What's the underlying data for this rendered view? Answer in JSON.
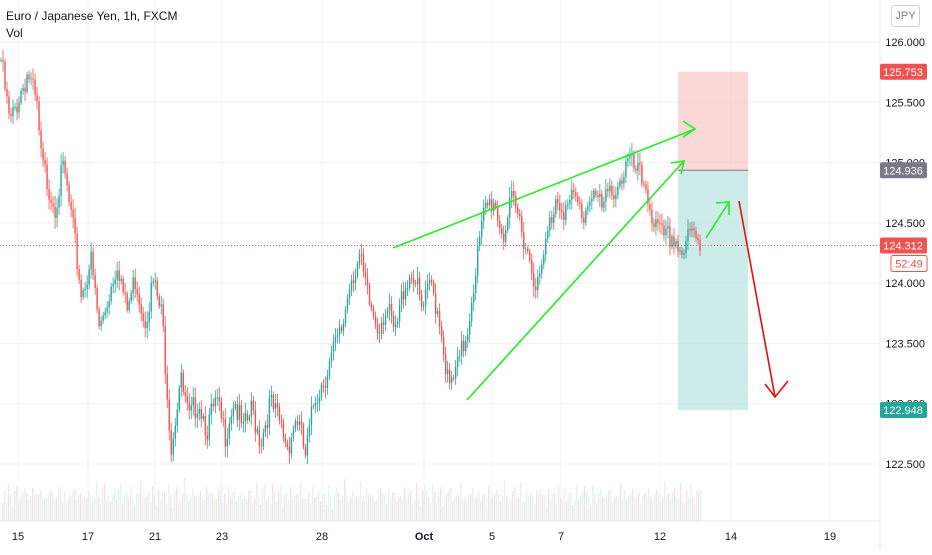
{
  "header": {
    "title": "Euro / Japanese Yen, 1h, FXCM",
    "indicator": "Vol",
    "currency_badge": "JPY"
  },
  "chart_data": {
    "type": "candlestick",
    "symbol": "EURJPY",
    "y_ticks": [
      126.0,
      125.5,
      125.0,
      124.5,
      124.0,
      123.5,
      123.0,
      122.5
    ],
    "y_tick_labels": [
      "126.000",
      "125.500",
      "125.000",
      "124.500",
      "124.000",
      "123.500",
      "123.000",
      "122.500"
    ],
    "ylim": [
      122.4,
      126.25
    ],
    "x_tick_labels": [
      "15",
      "17",
      "21",
      "23",
      "28",
      "Oct",
      "5",
      "7",
      "12",
      "14",
      "19"
    ],
    "grid": true,
    "last_price": "124.312",
    "countdown": "52:49",
    "stop_level": "125.753",
    "entry_level": "124.936",
    "target_level": "122.948",
    "colors": {
      "up": "#26a69a",
      "down": "#ef5350",
      "trendlines": "#22ee22",
      "down_arrow": "#e01010",
      "stop_zone": "#f9c7c7",
      "target_zone": "#b8e4df",
      "last_price_tag": "#ef5350",
      "entry_tag": "#787b86",
      "target_tag": "#26a69a"
    },
    "price_path": [
      [
        0,
        125.85
      ],
      [
        2,
        125.3
      ],
      [
        4,
        125.55
      ],
      [
        6,
        125.75
      ],
      [
        8,
        125.45
      ],
      [
        9,
        125.0
      ],
      [
        12,
        124.65
      ],
      [
        14,
        124.95
      ],
      [
        16,
        124.45
      ],
      [
        18,
        123.9
      ],
      [
        20,
        124.2
      ],
      [
        22,
        123.6
      ],
      [
        24,
        123.9
      ],
      [
        26,
        124.2
      ],
      [
        28,
        123.75
      ],
      [
        30,
        124.05
      ],
      [
        32,
        123.7
      ],
      [
        34,
        124.0
      ],
      [
        36,
        123.7
      ],
      [
        38,
        122.65
      ],
      [
        40,
        123.2
      ],
      [
        42,
        122.85
      ],
      [
        44,
        123.05
      ],
      [
        46,
        122.8
      ],
      [
        48,
        123.0
      ],
      [
        50,
        122.75
      ],
      [
        52,
        123.05
      ],
      [
        54,
        122.75
      ],
      [
        56,
        122.95
      ],
      [
        58,
        122.7
      ],
      [
        60,
        123.0
      ],
      [
        62,
        122.85
      ],
      [
        64,
        122.65
      ],
      [
        66,
        122.9
      ],
      [
        68,
        122.55
      ],
      [
        70,
        123.05
      ],
      [
        72,
        123.2
      ],
      [
        74,
        123.4
      ],
      [
        76,
        123.6
      ],
      [
        78,
        124.05
      ],
      [
        80,
        124.2
      ],
      [
        82,
        123.85
      ],
      [
        84,
        123.65
      ],
      [
        86,
        123.8
      ],
      [
        88,
        123.55
      ],
      [
        90,
        124.0
      ],
      [
        92,
        124.1
      ],
      [
        94,
        123.75
      ],
      [
        96,
        124.0
      ],
      [
        98,
        123.7
      ],
      [
        100,
        123.1
      ],
      [
        102,
        123.3
      ],
      [
        104,
        123.6
      ],
      [
        106,
        124.15
      ],
      [
        108,
        124.6
      ],
      [
        110,
        124.7
      ],
      [
        112,
        124.4
      ],
      [
        114,
        124.65
      ],
      [
        116,
        124.5
      ],
      [
        118,
        124.2
      ],
      [
        120,
        123.95
      ],
      [
        122,
        124.4
      ],
      [
        124,
        124.75
      ],
      [
        126,
        124.6
      ],
      [
        128,
        124.7
      ],
      [
        130,
        124.55
      ],
      [
        132,
        124.8
      ],
      [
        134,
        124.6
      ],
      [
        136,
        124.75
      ],
      [
        138,
        124.85
      ],
      [
        140,
        125.0
      ],
      [
        142,
        124.9
      ],
      [
        144,
        124.8
      ],
      [
        146,
        124.45
      ],
      [
        148,
        124.35
      ],
      [
        150,
        124.4
      ],
      [
        152,
        124.25
      ],
      [
        154,
        124.4
      ],
      [
        156,
        124.31
      ]
    ],
    "volume_profile": [
      4,
      6,
      3,
      7,
      5,
      2,
      5,
      8,
      4,
      3,
      6,
      9,
      5,
      4,
      3,
      7,
      6,
      4,
      5,
      8,
      3,
      4,
      6,
      5,
      7,
      4,
      3,
      5,
      6,
      8,
      4,
      5,
      3,
      6,
      4,
      7,
      5,
      3,
      6,
      4
    ]
  }
}
